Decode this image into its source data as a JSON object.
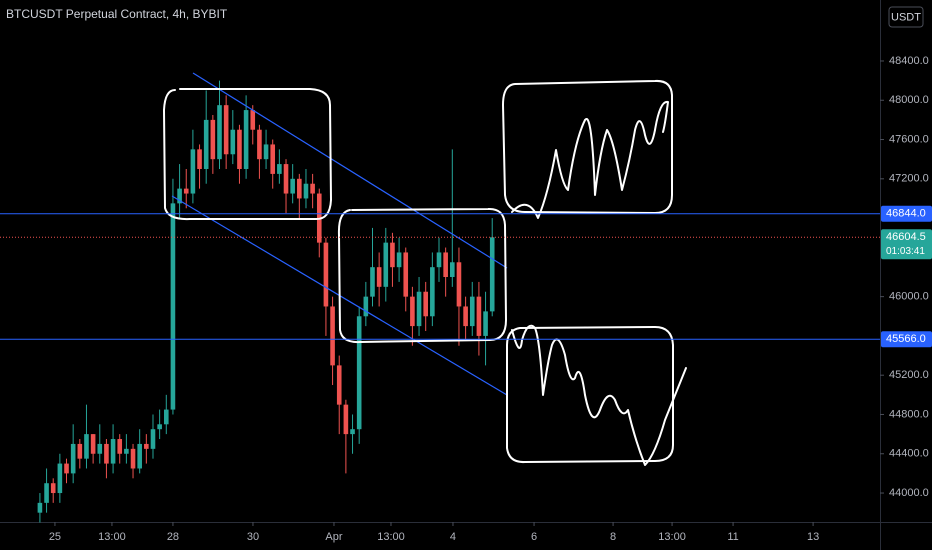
{
  "chart_data": {
    "type": "candlestick",
    "title": "BTCUSDT Perpetual Contract, 4h, BYBIT",
    "currency": "USDT",
    "x": [
      0,
      1,
      2,
      3,
      4,
      5,
      6,
      7,
      8,
      9,
      10,
      11,
      12,
      13,
      14,
      15,
      16,
      17,
      18,
      19,
      20,
      21,
      22,
      23,
      24,
      25,
      26,
      27,
      28,
      29,
      30,
      31,
      32,
      33,
      34,
      35,
      36,
      37,
      38,
      39,
      40,
      41,
      42,
      43,
      44,
      45,
      46,
      47,
      48,
      49,
      50,
      51,
      52,
      53,
      54,
      55,
      56,
      57,
      58,
      59,
      60,
      61,
      62,
      63,
      64,
      65,
      66,
      67,
      68
    ],
    "open": [
      43800,
      43900,
      44100,
      44000,
      44300,
      44200,
      44500,
      44350,
      44600,
      44400,
      44500,
      44300,
      44550,
      44400,
      44450,
      44250,
      44500,
      44450,
      44650,
      44700,
      44850,
      46950,
      47100,
      47050,
      47500,
      47300,
      47800,
      47400,
      47950,
      47450,
      47700,
      47300,
      47900,
      47700,
      47400,
      47550,
      47250,
      47350,
      47050,
      47200,
      47000,
      47150,
      47050,
      46550,
      45900,
      45300,
      44900,
      44600,
      44650,
      45800,
      46000,
      46300,
      46100,
      46550,
      46300,
      46450,
      46000,
      45700,
      46050,
      45800,
      46300,
      46450,
      46200,
      46350,
      45900,
      45700,
      46000,
      45600,
      45850
    ],
    "high": [
      44000,
      44250,
      44150,
      44400,
      44350,
      44700,
      44550,
      44900,
      44600,
      44700,
      44550,
      44700,
      44600,
      44600,
      44500,
      44650,
      44600,
      44800,
      44850,
      45000,
      47200,
      47350,
      47300,
      47700,
      47550,
      48100,
      47850,
      48200,
      48050,
      47900,
      47750,
      48050,
      47950,
      47750,
      47700,
      47600,
      47500,
      47400,
      47350,
      47250,
      47300,
      47250,
      47100,
      46600,
      46000,
      45400,
      44950,
      44800,
      45900,
      46150,
      46700,
      46450,
      46700,
      46650,
      46600,
      46500,
      46100,
      46200,
      46150,
      46450,
      46600,
      46500,
      47500,
      46500,
      46000,
      46150,
      46150,
      46050,
      46800
    ],
    "low": [
      43700,
      43800,
      43900,
      43900,
      44100,
      44100,
      44250,
      44250,
      44300,
      44300,
      44150,
      44200,
      44300,
      44300,
      44150,
      44200,
      44300,
      44350,
      44550,
      44600,
      44800,
      46800,
      46900,
      46950,
      47100,
      47150,
      47250,
      47300,
      47300,
      47350,
      47150,
      47200,
      47550,
      47200,
      47300,
      47100,
      47150,
      46850,
      46950,
      46800,
      46900,
      46900,
      46400,
      45600,
      45100,
      44600,
      44200,
      44400,
      44500,
      45700,
      45900,
      45900,
      45950,
      46100,
      46150,
      45850,
      45500,
      45600,
      45650,
      45700,
      46150,
      46000,
      46100,
      45500,
      45550,
      45600,
      45400,
      45300,
      45800
    ],
    "close": [
      43900,
      44100,
      44000,
      44300,
      44200,
      44500,
      44350,
      44600,
      44400,
      44500,
      44300,
      44550,
      44400,
      44450,
      44250,
      44500,
      44450,
      44650,
      44700,
      44850,
      46950,
      47100,
      47050,
      47500,
      47300,
      47800,
      47400,
      47950,
      47450,
      47700,
      47300,
      47900,
      47700,
      47400,
      47550,
      47250,
      47350,
      47050,
      47200,
      47000,
      47150,
      47050,
      46550,
      45900,
      45300,
      44900,
      44600,
      44650,
      45800,
      46000,
      46300,
      46100,
      46550,
      46300,
      46450,
      46000,
      45700,
      46050,
      45800,
      46300,
      46450,
      46200,
      46350,
      45900,
      45700,
      46000,
      45600,
      45850,
      46604.5
    ],
    "up_color": "#26a69a",
    "down_color": "#ef5350",
    "xlim": [
      -6,
      126.3
    ],
    "xticks": [
      {
        "value": 2.26,
        "label": "25"
      },
      {
        "value": 10.83,
        "label": "13:00"
      },
      {
        "value": 20,
        "label": "28"
      },
      {
        "value": 32.03,
        "label": "30"
      },
      {
        "value": 44.21,
        "label": "Apr"
      },
      {
        "value": 52.78,
        "label": "13:00"
      },
      {
        "value": 62.1,
        "label": "4"
      },
      {
        "value": 74.29,
        "label": "6"
      },
      {
        "value": 86.17,
        "label": "8"
      },
      {
        "value": 95.04,
        "label": "13:00"
      },
      {
        "value": 104.21,
        "label": "11"
      },
      {
        "value": 116.24,
        "label": "13"
      }
    ],
    "ylim": [
      43705,
      49021
    ],
    "yticks": [
      {
        "value": 48400,
        "label": "48400.0"
      },
      {
        "value": 48000,
        "label": "48000.0"
      },
      {
        "value": 47600,
        "label": "47600.0"
      },
      {
        "value": 47200,
        "label": "47200.0"
      },
      {
        "value": 46000,
        "label": "46000.0"
      },
      {
        "value": 45200,
        "label": "45200.0"
      },
      {
        "value": 44800,
        "label": "44800.0"
      },
      {
        "value": 44400,
        "label": "44400.0"
      },
      {
        "value": 44000,
        "label": "44000.0"
      }
    ],
    "levels": [
      {
        "value": 46844,
        "label": "46844.0",
        "color": "#2962ff"
      },
      {
        "value": 45566,
        "label": "45566.0",
        "color": "#2962ff"
      }
    ],
    "last_price": {
      "value": 46604.5,
      "countdown": "01:03:41",
      "color": "#26a69a",
      "line_color": "#ef5350"
    }
  }
}
